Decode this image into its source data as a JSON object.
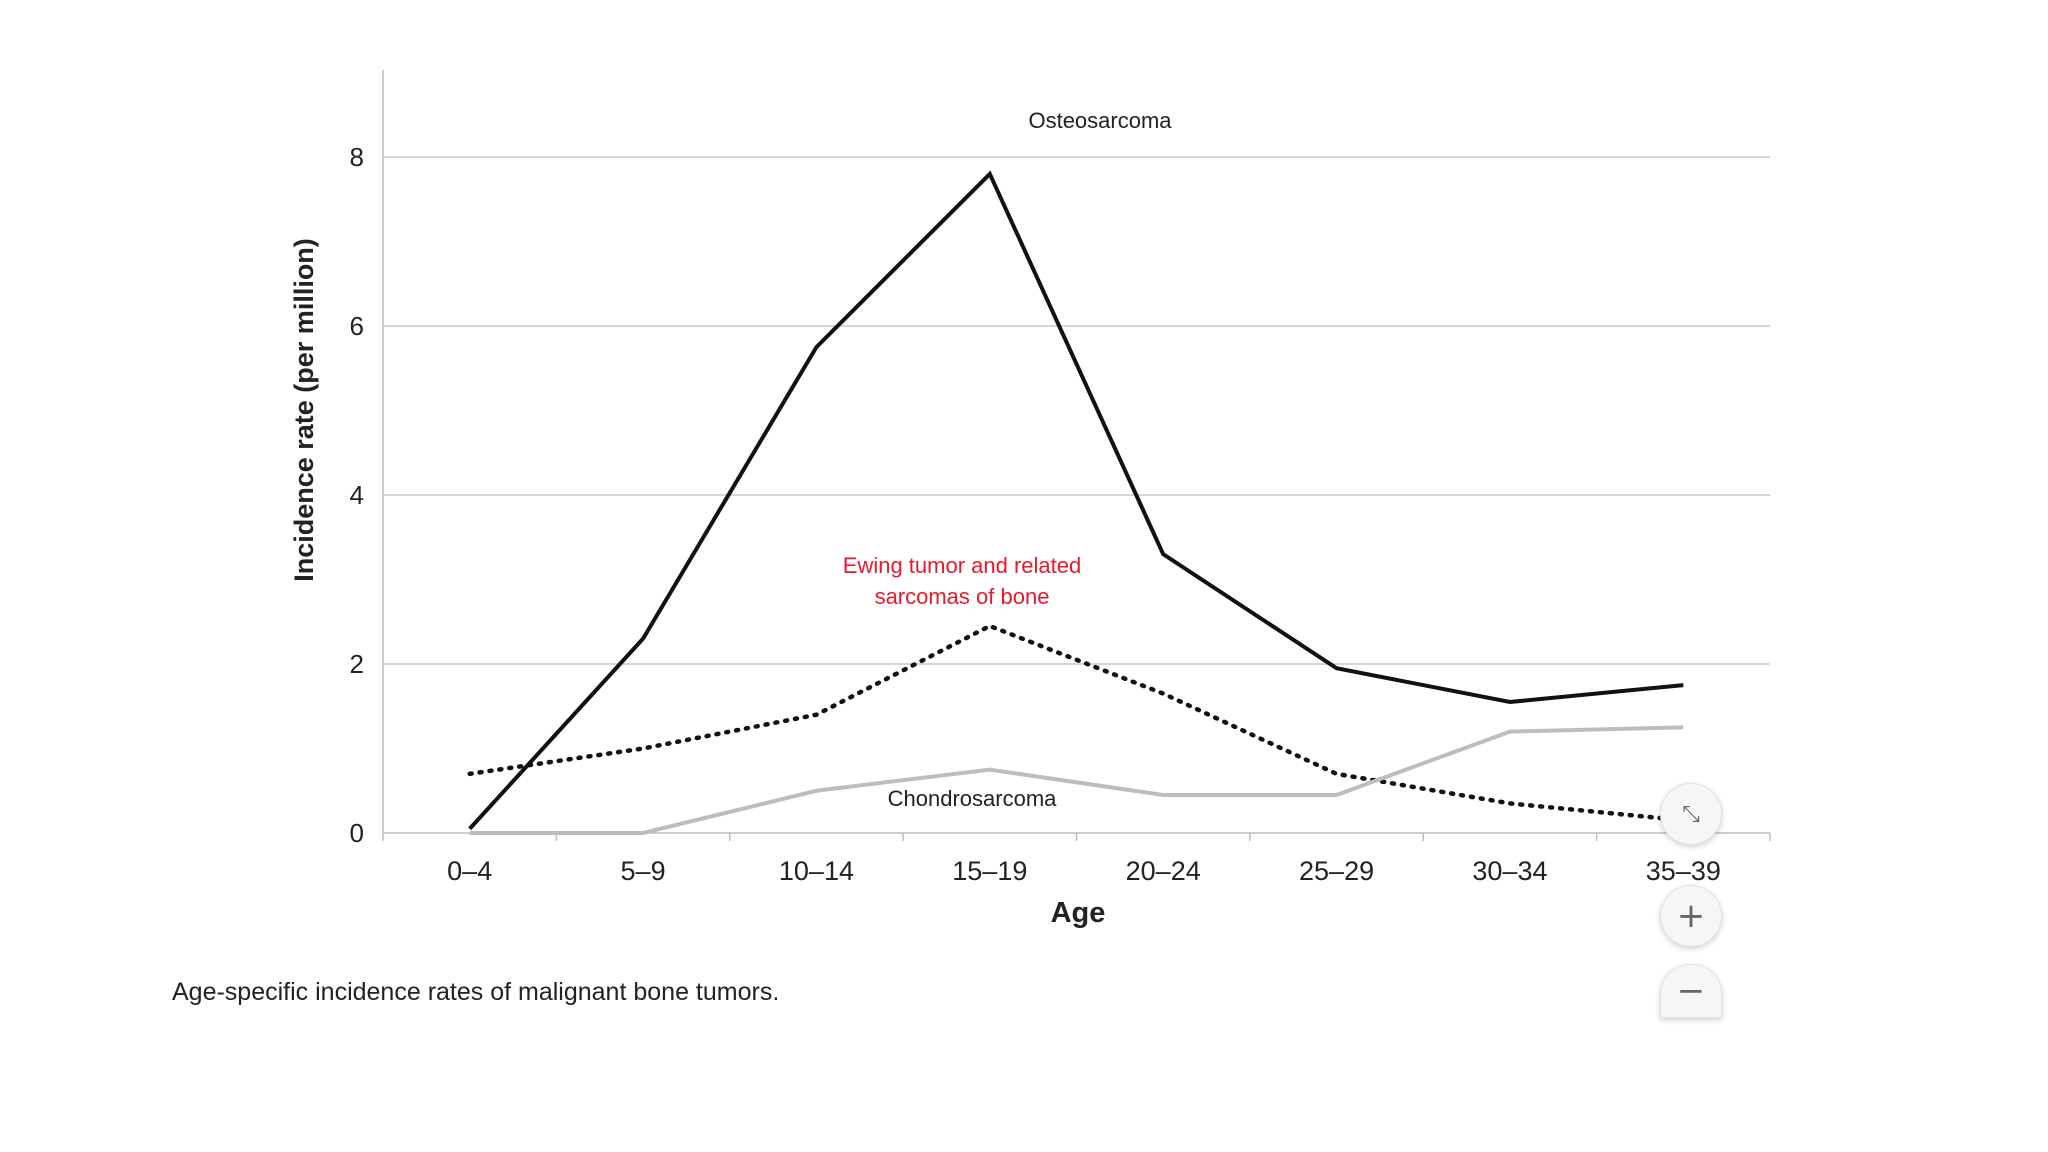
{
  "caption": "Age-specific incidence rates of malignant bone tumors.",
  "controls": {
    "fit_icon": "compress-icon",
    "zoom_in_label": "+",
    "zoom_out_label": "−"
  },
  "chart_data": {
    "type": "line",
    "title": "",
    "xlabel": "Age",
    "ylabel": "Incidence rate (per million)",
    "categories": [
      "0–4",
      "5–9",
      "10–14",
      "15–19",
      "20–24",
      "25–29",
      "30–34",
      "35–39"
    ],
    "ylim": [
      0,
      9
    ],
    "yticks": [
      0,
      2,
      4,
      6,
      8
    ],
    "grid": true,
    "series": [
      {
        "name": "Osteosarcoma",
        "values": [
          0.05,
          2.3,
          5.75,
          7.8,
          3.3,
          1.95,
          1.55,
          1.75
        ],
        "color": "#111111",
        "style": "solid"
      },
      {
        "name": "Ewing tumor and related sarcomas of bone",
        "label_lines": [
          "Ewing tumor and related",
          "sarcomas of bone"
        ],
        "values": [
          0.7,
          1.0,
          1.4,
          2.45,
          1.65,
          0.7,
          0.35,
          0.15
        ],
        "color": "#111111",
        "label_color": "#e8192c",
        "style": "dotted"
      },
      {
        "name": "Chondrosarcoma",
        "values": [
          0.0,
          0.0,
          0.5,
          0.75,
          0.45,
          0.45,
          1.2,
          1.25
        ],
        "color": "#bdbdbd",
        "style": "solid"
      }
    ]
  }
}
